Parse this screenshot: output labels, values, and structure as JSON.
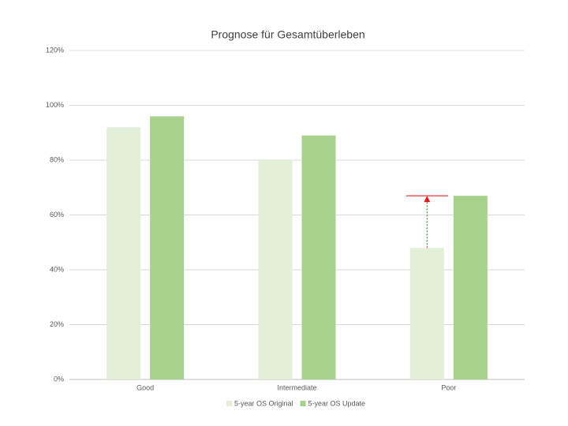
{
  "chart_data": {
    "type": "bar",
    "title": "Prognose für Gesamtüberleben",
    "categories": [
      "Good",
      "Intermediate",
      "Poor"
    ],
    "series": [
      {
        "name": "5-year OS Original",
        "color": "#e2f0d9",
        "values": [
          92,
          80,
          48
        ]
      },
      {
        "name": "5-year OS Update",
        "color": "#a9d18e",
        "values": [
          96,
          89,
          67
        ]
      }
    ],
    "ylim": [
      0,
      120
    ],
    "yticks": [
      {
        "value": 0,
        "label": "0%"
      },
      {
        "value": 20,
        "label": "20%"
      },
      {
        "value": 40,
        "label": "40%"
      },
      {
        "value": 60,
        "label": "60%"
      },
      {
        "value": 80,
        "label": "80%"
      },
      {
        "value": 100,
        "label": "100%"
      },
      {
        "value": 120,
        "label": "120%"
      }
    ],
    "grid": true,
    "legend": "bottom"
  }
}
